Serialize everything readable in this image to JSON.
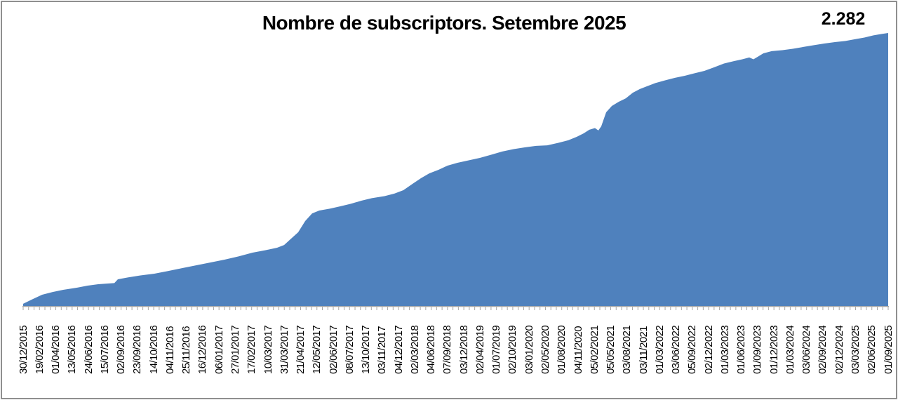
{
  "chart_data": {
    "type": "area",
    "title": "Nombre de subscriptors. Setembre 2025",
    "series_name": "Nombre de subscriptors",
    "end_label": "2.282",
    "final_value": 2282,
    "xlabel": "",
    "ylabel": "",
    "ylim": [
      0,
      2282
    ],
    "grid": false,
    "legend_position": "none",
    "colors": {
      "area": "#4F81BD",
      "axis": "#A6A6A6",
      "text": "#000000",
      "border": "#8F8F8F",
      "background": "#FFFFFF"
    },
    "categories": [
      "30/12/2015",
      "19/02/2016",
      "01/04/2016",
      "13/05/2016",
      "24/06/2016",
      "15/07/2016",
      "02/09/2016",
      "23/09/2016",
      "14/10/2016",
      "04/11/2016",
      "25/11/2016",
      "16/12/2016",
      "06/01/2017",
      "27/01/2017",
      "17/02/2017",
      "10/03/2017",
      "31/03/2017",
      "21/04/2017",
      "12/05/2017",
      "02/06/2017",
      "08/07/2017",
      "13/10/2017",
      "03/11/2017",
      "04/12/2017",
      "02/03/2018",
      "04/06/2018",
      "07/09/2018",
      "03/12/2018",
      "02/04/2019",
      "01/07/2019",
      "02/10/2019",
      "03/01/2020",
      "02/05/2020",
      "01/08/2020",
      "04/11/2020",
      "05/02/2021",
      "05/05/2021",
      "03/08/2021",
      "03/11/2021",
      "01/03/2022",
      "03/06/2022",
      "05/09/2022",
      "02/12/2022",
      "01/03/2023",
      "01/06/2023",
      "01/09/2023",
      "01/12/2023",
      "01/03/2024",
      "03/06/2024",
      "02/09/2024",
      "02/12/2024",
      "03/03/2025",
      "02/06/2025",
      "01/09/2025"
    ],
    "values": [
      29,
      91,
      126,
      153,
      170,
      188,
      229,
      252,
      270,
      296,
      320,
      352,
      378,
      411,
      443,
      469,
      499,
      645,
      786,
      816,
      848,
      892,
      915,
      945,
      1021,
      1103,
      1165,
      1206,
      1232,
      1267,
      1303,
      1326,
      1341,
      1361,
      1399,
      1478,
      1631,
      1725,
      1807,
      1860,
      1895,
      1927,
      1962,
      2009,
      2050,
      2077,
      2121,
      2138,
      2159,
      2182,
      2200,
      2218,
      2244,
      2282
    ],
    "detail_points": [
      [
        0.0,
        18
      ],
      [
        0.0097,
        53
      ],
      [
        0.0219,
        94
      ],
      [
        0.0341,
        117
      ],
      [
        0.0462,
        135
      ],
      [
        0.0625,
        153
      ],
      [
        0.0746,
        170
      ],
      [
        0.0868,
        182
      ],
      [
        0.1054,
        191
      ],
      [
        0.1095,
        223
      ],
      [
        0.1209,
        238
      ],
      [
        0.1355,
        255
      ],
      [
        0.1517,
        270
      ],
      [
        0.1679,
        293
      ],
      [
        0.1841,
        317
      ],
      [
        0.2003,
        340
      ],
      [
        0.2166,
        364
      ],
      [
        0.2328,
        387
      ],
      [
        0.249,
        414
      ],
      [
        0.2652,
        446
      ],
      [
        0.2798,
        466
      ],
      [
        0.2936,
        487
      ],
      [
        0.3017,
        510
      ],
      [
        0.3098,
        563
      ],
      [
        0.3179,
        616
      ],
      [
        0.326,
        710
      ],
      [
        0.3341,
        774
      ],
      [
        0.3423,
        798
      ],
      [
        0.3544,
        813
      ],
      [
        0.3666,
        833
      ],
      [
        0.3788,
        854
      ],
      [
        0.3909,
        880
      ],
      [
        0.4031,
        901
      ],
      [
        0.4177,
        918
      ],
      [
        0.4291,
        939
      ],
      [
        0.4396,
        968
      ],
      [
        0.4501,
        1021
      ],
      [
        0.4599,
        1068
      ],
      [
        0.4696,
        1109
      ],
      [
        0.4801,
        1138
      ],
      [
        0.4907,
        1173
      ],
      [
        0.502,
        1197
      ],
      [
        0.515,
        1217
      ],
      [
        0.528,
        1238
      ],
      [
        0.541,
        1264
      ],
      [
        0.5539,
        1291
      ],
      [
        0.5669,
        1311
      ],
      [
        0.5799,
        1326
      ],
      [
        0.5929,
        1338
      ],
      [
        0.6058,
        1343
      ],
      [
        0.6188,
        1364
      ],
      [
        0.6302,
        1385
      ],
      [
        0.6399,
        1414
      ],
      [
        0.648,
        1443
      ],
      [
        0.6545,
        1473
      ],
      [
        0.661,
        1487
      ],
      [
        0.665,
        1467
      ],
      [
        0.6683,
        1502
      ],
      [
        0.674,
        1619
      ],
      [
        0.6805,
        1672
      ],
      [
        0.6886,
        1707
      ],
      [
        0.6967,
        1736
      ],
      [
        0.7048,
        1783
      ],
      [
        0.7129,
        1813
      ],
      [
        0.721,
        1836
      ],
      [
        0.7308,
        1863
      ],
      [
        0.7421,
        1886
      ],
      [
        0.7535,
        1907
      ],
      [
        0.7648,
        1924
      ],
      [
        0.7762,
        1945
      ],
      [
        0.7875,
        1965
      ],
      [
        0.7989,
        1995
      ],
      [
        0.8102,
        2027
      ],
      [
        0.8216,
        2047
      ],
      [
        0.8313,
        2062
      ],
      [
        0.8394,
        2077
      ],
      [
        0.8443,
        2062
      ],
      [
        0.8492,
        2083
      ],
      [
        0.8557,
        2112
      ],
      [
        0.8654,
        2130
      ],
      [
        0.8776,
        2138
      ],
      [
        0.8898,
        2150
      ],
      [
        0.9019,
        2165
      ],
      [
        0.9141,
        2180
      ],
      [
        0.9263,
        2194
      ],
      [
        0.9384,
        2206
      ],
      [
        0.9506,
        2215
      ],
      [
        0.9611,
        2229
      ],
      [
        0.9725,
        2244
      ],
      [
        0.983,
        2262
      ],
      [
        0.9919,
        2273
      ],
      [
        1.0,
        2282
      ]
    ]
  }
}
